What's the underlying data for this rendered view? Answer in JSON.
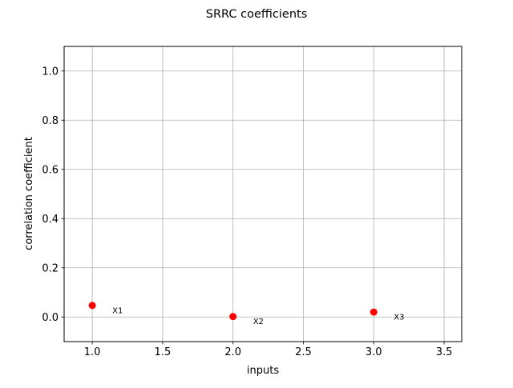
{
  "chart_data": {
    "type": "scatter",
    "title": "SRRC coefficients",
    "xlabel": "inputs",
    "ylabel": "correlation coefficient",
    "xlim": [
      0.8,
      3.625
    ],
    "ylim": [
      -0.1,
      1.1
    ],
    "xticks": [
      1.0,
      1.5,
      2.0,
      2.5,
      3.0,
      3.5
    ],
    "xtick_labels": [
      "1.0",
      "1.5",
      "2.0",
      "2.5",
      "3.0",
      "3.5"
    ],
    "yticks": [
      0.0,
      0.2,
      0.4,
      0.6,
      0.8,
      1.0
    ],
    "ytick_labels": [
      "0.0",
      "0.2",
      "0.4",
      "0.6",
      "0.8",
      "1.0"
    ],
    "grid": true,
    "marker_color": "#ff0000",
    "points": [
      {
        "x": 1.0,
        "y": 0.047,
        "label": "X1"
      },
      {
        "x": 2.0,
        "y": 0.002,
        "label": "X2"
      },
      {
        "x": 3.0,
        "y": 0.02,
        "label": "X3"
      }
    ]
  }
}
